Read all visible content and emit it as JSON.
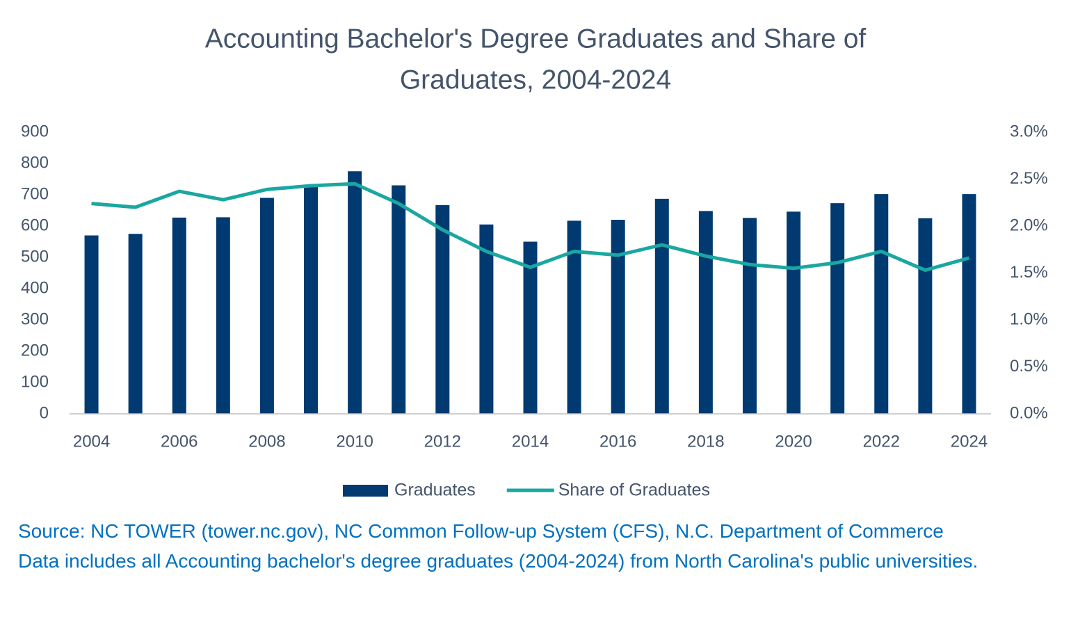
{
  "chart_data": {
    "type": "bar-line",
    "title": [
      "Accounting Bachelor's Degree Graduates and Share of",
      "Graduates, 2004-2024"
    ],
    "categories": [
      "2004",
      null,
      "2006",
      null,
      "2008",
      null,
      "2010",
      null,
      "2012",
      null,
      "2014",
      null,
      "2016",
      null,
      "2018",
      null,
      "2020",
      null,
      "2022",
      null,
      "2024"
    ],
    "series": [
      {
        "name": "Graduates",
        "type": "bar",
        "color": "#003a70",
        "values": [
          570,
          575,
          627,
          628,
          690,
          730,
          775,
          730,
          667,
          605,
          550,
          617,
          620,
          687,
          648,
          626,
          646,
          673,
          702,
          625,
          702
        ]
      },
      {
        "name": "Share of Graduates",
        "type": "line",
        "axis": "y2",
        "color": "#1aa7a1",
        "values": [
          2.24,
          2.2,
          2.37,
          2.28,
          2.39,
          2.43,
          2.45,
          2.24,
          1.96,
          1.73,
          1.56,
          1.73,
          1.69,
          1.8,
          1.68,
          1.59,
          1.55,
          1.61,
          1.73,
          1.53,
          1.66
        ]
      }
    ],
    "ylim": [
      0,
      900
    ],
    "yticks": [
      0,
      100,
      200,
      300,
      400,
      500,
      600,
      700,
      800,
      900
    ],
    "y2lim": [
      0,
      3
    ],
    "y2ticks": [
      {
        "value": 0,
        "label": "0.0%"
      },
      {
        "value": 0.5,
        "label": "0.5%"
      },
      {
        "value": 1,
        "label": "1.0%"
      },
      {
        "value": 1.5,
        "label": "1.5%"
      },
      {
        "value": 2,
        "label": "2.0%"
      },
      {
        "value": 2.5,
        "label": "2.5%"
      },
      {
        "value": 3,
        "label": "3.0%"
      }
    ],
    "grid": false,
    "legend": "bottom",
    "notes": [
      "Source: NC TOWER (tower.nc.gov), NC Common Follow-up System (CFS), N.C. Department of Commerce",
      "Data includes all Accounting bachelor's degree graduates (2004-2024) from North Carolina's public universities."
    ]
  }
}
